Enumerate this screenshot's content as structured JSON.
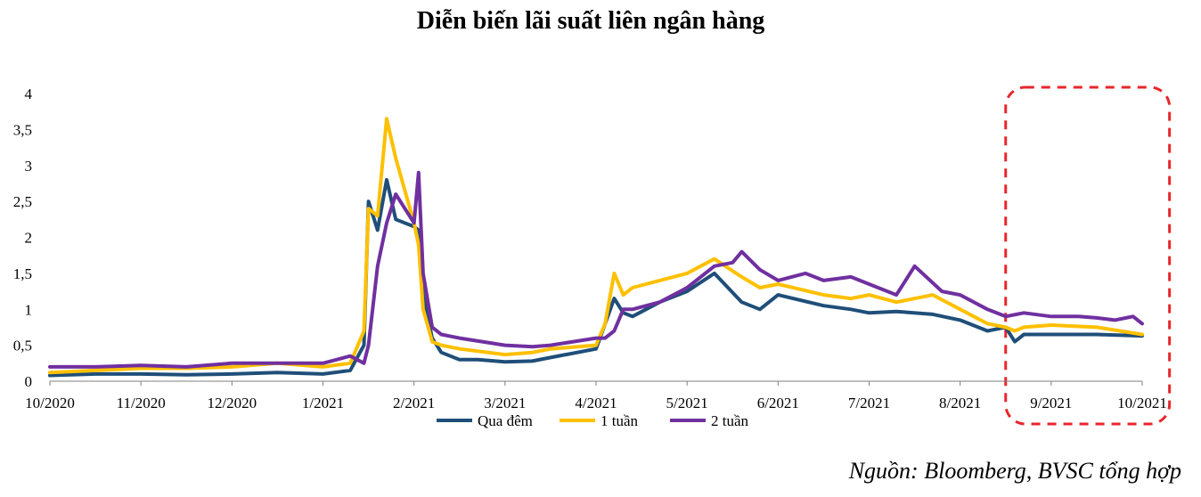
{
  "chart_data": {
    "type": "line",
    "title": "Diễn biến lãi suất liên ngân hàng",
    "xlabel": "",
    "ylabel": "",
    "x_ticks": [
      "10/2020",
      "11/2020",
      "12/2020",
      "1/2021",
      "2/2021",
      "3/2021",
      "4/2021",
      "5/2021",
      "6/2021",
      "7/2021",
      "8/2021",
      "9/2021",
      "10/2021"
    ],
    "y_ticks": [
      "0",
      "0,5",
      "1",
      "1,5",
      "2",
      "2,5",
      "3",
      "3,5",
      "4"
    ],
    "ylim": [
      0,
      4
    ],
    "xlim": [
      0,
      12
    ],
    "legend_position": "bottom",
    "source": "Nguồn: Bloomberg, BVSC tổng hợp",
    "highlight": {
      "from": 10.5,
      "to": 12.3,
      "color": "#e8262a"
    },
    "series": [
      {
        "name": "Qua đêm",
        "color": "#1f4e79",
        "x": [
          0,
          0.5,
          1,
          1.5,
          2,
          2.5,
          3,
          3.3,
          3.45,
          3.5,
          3.6,
          3.7,
          3.8,
          4,
          4.05,
          4.1,
          4.2,
          4.3,
          4.5,
          4.7,
          5,
          5.3,
          5.5,
          6,
          6.1,
          6.2,
          6.3,
          6.4,
          6.7,
          7,
          7.3,
          7.6,
          7.8,
          8,
          8.5,
          8.8,
          9,
          9.3,
          9.7,
          10,
          10.3,
          10.5,
          10.6,
          10.7,
          11,
          11.5,
          12
        ],
        "y": [
          0.08,
          0.1,
          0.1,
          0.09,
          0.1,
          0.12,
          0.1,
          0.15,
          0.5,
          2.5,
          2.1,
          2.8,
          2.25,
          2.15,
          2.1,
          1.2,
          0.6,
          0.4,
          0.3,
          0.3,
          0.27,
          0.28,
          0.33,
          0.45,
          0.8,
          1.15,
          0.95,
          0.9,
          1.1,
          1.25,
          1.5,
          1.1,
          1.0,
          1.2,
          1.05,
          1.0,
          0.95,
          0.97,
          0.93,
          0.85,
          0.7,
          0.75,
          0.55,
          0.65,
          0.65,
          0.65,
          0.63
        ]
      },
      {
        "name": "1 tuần",
        "color": "#ffc000",
        "x": [
          0,
          0.5,
          1,
          1.5,
          2,
          2.5,
          3,
          3.3,
          3.45,
          3.5,
          3.6,
          3.7,
          3.8,
          4,
          4.05,
          4.1,
          4.2,
          4.3,
          4.5,
          5,
          5.3,
          5.5,
          6,
          6.1,
          6.2,
          6.3,
          6.4,
          6.7,
          7,
          7.3,
          7.6,
          7.8,
          8,
          8.5,
          8.8,
          9,
          9.3,
          9.7,
          10,
          10.3,
          10.5,
          10.6,
          10.7,
          11,
          11.5,
          12
        ],
        "y": [
          0.12,
          0.15,
          0.18,
          0.18,
          0.2,
          0.25,
          0.2,
          0.25,
          0.7,
          2.4,
          2.3,
          3.65,
          3.1,
          2.2,
          1.9,
          1.0,
          0.55,
          0.5,
          0.45,
          0.37,
          0.4,
          0.45,
          0.5,
          0.8,
          1.5,
          1.2,
          1.3,
          1.4,
          1.5,
          1.7,
          1.45,
          1.3,
          1.35,
          1.2,
          1.15,
          1.2,
          1.1,
          1.2,
          1.0,
          0.8,
          0.75,
          0.7,
          0.75,
          0.78,
          0.75,
          0.65
        ]
      },
      {
        "name": "2 tuần",
        "color": "#7030a0",
        "x": [
          0,
          0.5,
          1,
          1.5,
          2,
          2.5,
          3,
          3.3,
          3.45,
          3.5,
          3.6,
          3.7,
          3.8,
          4,
          4.05,
          4.1,
          4.2,
          4.3,
          4.5,
          5,
          5.3,
          5.5,
          6,
          6.1,
          6.2,
          6.3,
          6.4,
          6.7,
          7,
          7.3,
          7.5,
          7.6,
          7.8,
          8,
          8.3,
          8.5,
          8.8,
          9,
          9.3,
          9.5,
          9.8,
          10,
          10.3,
          10.5,
          10.7,
          11,
          11.3,
          11.5,
          11.7,
          11.9,
          12
        ],
        "y": [
          0.2,
          0.2,
          0.22,
          0.2,
          0.25,
          0.25,
          0.25,
          0.35,
          0.25,
          0.5,
          1.6,
          2.2,
          2.6,
          2.2,
          2.9,
          1.5,
          0.75,
          0.65,
          0.6,
          0.5,
          0.48,
          0.5,
          0.6,
          0.6,
          0.7,
          1.0,
          1.0,
          1.1,
          1.3,
          1.6,
          1.65,
          1.8,
          1.55,
          1.4,
          1.5,
          1.4,
          1.45,
          1.35,
          1.2,
          1.6,
          1.25,
          1.2,
          1.0,
          0.9,
          0.95,
          0.9,
          0.9,
          0.88,
          0.85,
          0.9,
          0.8
        ]
      }
    ]
  }
}
